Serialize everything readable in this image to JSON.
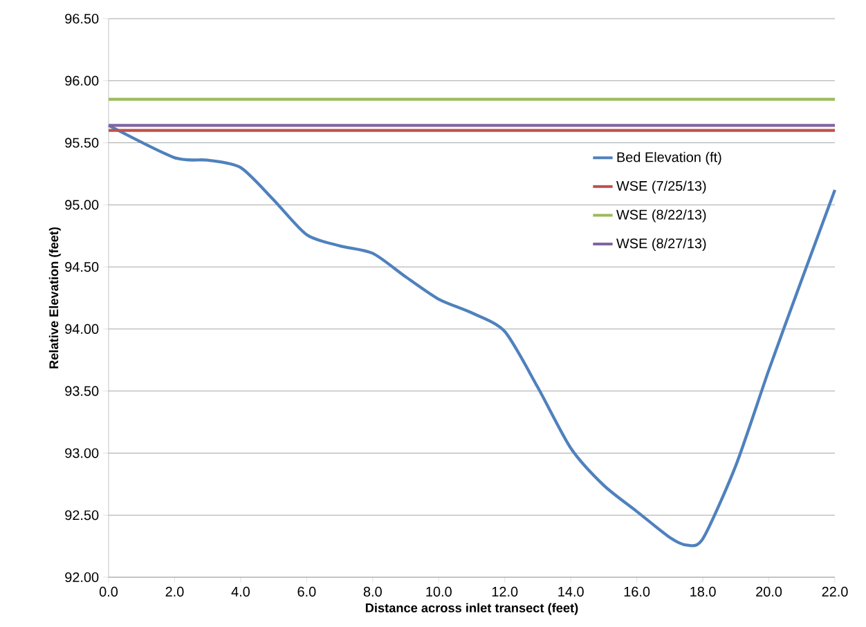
{
  "chart_data": {
    "type": "line",
    "xlabel": "Distance across inlet transect (feet)",
    "ylabel": "Relative Elevation (feet)",
    "xlim": [
      0,
      22
    ],
    "ylim": [
      92,
      96.5
    ],
    "xticks": [
      {
        "value": 0,
        "label": "0.0"
      },
      {
        "value": 2,
        "label": "2.0"
      },
      {
        "value": 4,
        "label": "4.0"
      },
      {
        "value": 6,
        "label": "6.0"
      },
      {
        "value": 8,
        "label": "8.0"
      },
      {
        "value": 10,
        "label": "10.0"
      },
      {
        "value": 12,
        "label": "12.0"
      },
      {
        "value": 14,
        "label": "14.0"
      },
      {
        "value": 16,
        "label": "16.0"
      },
      {
        "value": 18,
        "label": "18.0"
      },
      {
        "value": 20,
        "label": "20.0"
      },
      {
        "value": 22,
        "label": "22.0"
      }
    ],
    "yticks": [
      {
        "value": 92,
        "label": "92.00"
      },
      {
        "value": 92.5,
        "label": "92.50"
      },
      {
        "value": 93,
        "label": "93.00"
      },
      {
        "value": 93.5,
        "label": "93.50"
      },
      {
        "value": 94,
        "label": "94.00"
      },
      {
        "value": 94.5,
        "label": "94.50"
      },
      {
        "value": 95,
        "label": "95.00"
      },
      {
        "value": 95.5,
        "label": "95.50"
      },
      {
        "value": 96,
        "label": "96.00"
      },
      {
        "value": 96.5,
        "label": "96.50"
      }
    ],
    "grid": "y",
    "legend": "right",
    "marker": "none",
    "series": [
      {
        "name": "Bed Elevation (ft)",
        "color": "#4f81bd",
        "x": [
          0,
          2,
          3,
          4,
          5,
          6,
          7,
          8,
          9,
          10,
          11,
          12,
          13,
          14,
          15,
          16,
          17,
          17.5,
          18,
          19,
          20,
          21,
          22
        ],
        "values": [
          95.64,
          95.38,
          95.36,
          95.3,
          95.04,
          94.76,
          94.67,
          94.61,
          94.42,
          94.24,
          94.13,
          93.98,
          93.53,
          93.04,
          92.74,
          92.53,
          92.32,
          92.26,
          92.31,
          92.9,
          93.67,
          94.4,
          95.12
        ]
      },
      {
        "name": "WSE (7/25/13)",
        "color": "#c0504d",
        "x": [
          0,
          22
        ],
        "values": [
          95.6,
          95.6
        ]
      },
      {
        "name": "WSE (8/22/13)",
        "color": "#9bbb59",
        "x": [
          0,
          22
        ],
        "values": [
          95.85,
          95.85
        ]
      },
      {
        "name": "WSE (8/27/13)",
        "color": "#8064a2",
        "x": [
          0,
          22
        ],
        "values": [
          95.64,
          95.64
        ]
      }
    ]
  }
}
